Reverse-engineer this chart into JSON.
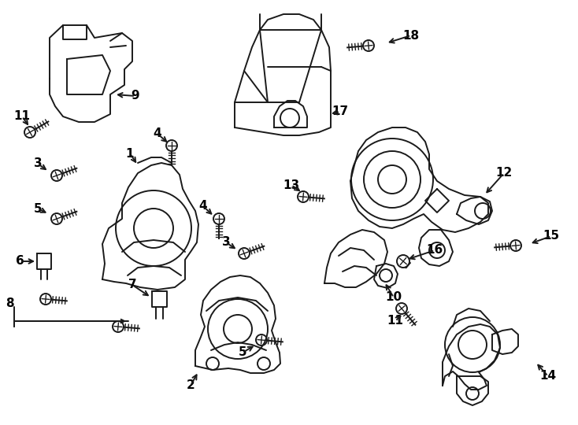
{
  "background_color": "#ffffff",
  "line_color": "#1a1a1a",
  "line_width": 1.4,
  "fig_width": 7.34,
  "fig_height": 5.4,
  "dpi": 100
}
